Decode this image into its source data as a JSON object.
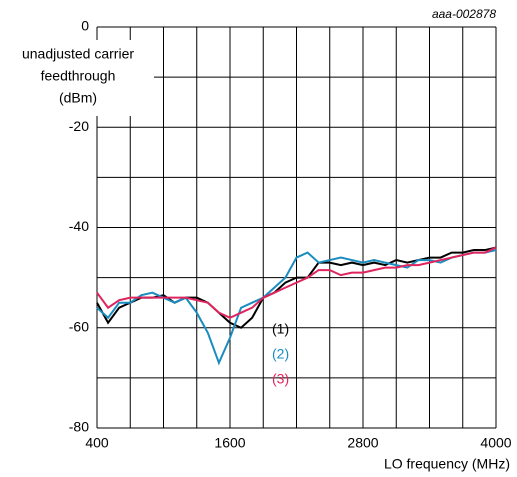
{
  "chart_data": {
    "type": "line",
    "annotation": "aaa-002878",
    "y_label_lines": [
      "unadjusted carrier",
      "feedthrough",
      "(dBm)"
    ],
    "x_label": "LO frequency (MHz)",
    "x": [
      400,
      500,
      600,
      700,
      800,
      900,
      1000,
      1100,
      1200,
      1300,
      1400,
      1500,
      1600,
      1700,
      1800,
      1900,
      2000,
      2100,
      2200,
      2300,
      2400,
      2500,
      2600,
      2700,
      2800,
      2900,
      3000,
      3100,
      3200,
      3300,
      3400,
      3500,
      3600,
      3700,
      3800,
      3900,
      4000
    ],
    "series": [
      {
        "name": "(1)",
        "color": "#000000",
        "values": [
          -55,
          -59,
          -56,
          -55,
          -54,
          -54,
          -53.5,
          -55,
          -54,
          -54,
          -55,
          -57,
          -59,
          -60,
          -58,
          -54,
          -53,
          -51,
          -50,
          -50,
          -47,
          -47,
          -47.5,
          -47,
          -47.5,
          -47,
          -47.5,
          -46.5,
          -47,
          -46.5,
          -46,
          -46,
          -45,
          -45,
          -44.5,
          -44.5,
          -44
        ]
      },
      {
        "name": "(2)",
        "color": "#1a8cc0",
        "values": [
          -56,
          -58,
          -55,
          -55,
          -53.5,
          -53,
          -54,
          -55,
          -54,
          -57,
          -61,
          -67,
          -62,
          -56,
          -55,
          -54,
          -52,
          -50,
          -46,
          -45,
          -47,
          -46.5,
          -46,
          -46.5,
          -47,
          -46.5,
          -47,
          -47.5,
          -48,
          -46.5,
          -46.5,
          -47,
          -46,
          -45.5,
          -45,
          -45,
          -44.5
        ]
      },
      {
        "name": "(3)",
        "color": "#e0245e",
        "values": [
          -53,
          -56,
          -54.5,
          -54,
          -54,
          -54,
          -54,
          -54,
          -54,
          -54.5,
          -55,
          -57,
          -58,
          -57,
          -56,
          -54,
          -53,
          -52,
          -51,
          -50,
          -48.5,
          -48.5,
          -49.5,
          -49,
          -49,
          -48.5,
          -48,
          -48,
          -47.5,
          -47.5,
          -47,
          -46.5,
          -46,
          -45.5,
          -45,
          -45,
          -44
        ]
      }
    ],
    "xlim": [
      400,
      4000
    ],
    "xticks": [
      400,
      1600,
      2800,
      4000
    ],
    "xgrid": [
      700,
      1000,
      1300,
      1900,
      2200,
      2500,
      3100,
      3400,
      3700
    ],
    "ylim": [
      -80,
      0
    ],
    "yticks": [
      -80,
      -60,
      -40,
      -20,
      0
    ],
    "ygrid": [
      -70,
      -50,
      -30,
      -10
    ]
  }
}
